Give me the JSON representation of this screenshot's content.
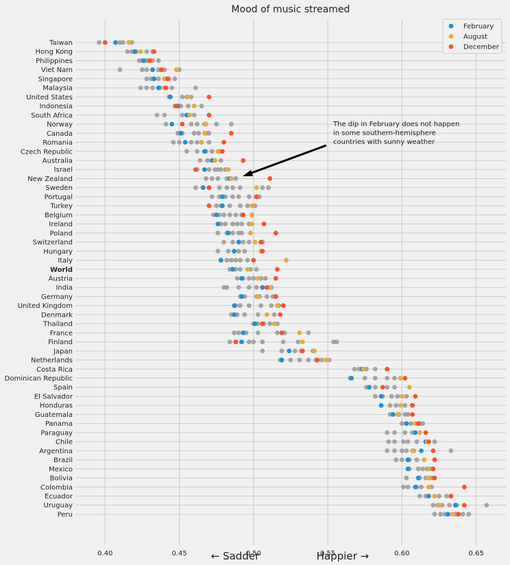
{
  "chart_data": {
    "type": "scatter",
    "title": "Mood of music streamed",
    "xlabel_left": "← Sadder",
    "xlabel_right": "Happier →",
    "xlim": [
      0.38,
      0.67
    ],
    "x_ticks": [
      0.4,
      0.45,
      0.5,
      0.55,
      0.6,
      0.65
    ],
    "x_tick_labels": [
      "0.40",
      "0.45",
      "0.50",
      "0.55",
      "0.60",
      "0.65"
    ],
    "grid": true,
    "legend_position": "top-right",
    "highlight_category": "World",
    "annotation": {
      "text_lines": [
        "The dip in February does not happen",
        "in some southern-hemisphere",
        "countries with sunny weather"
      ],
      "points_to": {
        "category": "New Zealand",
        "x": 0.493
      }
    },
    "categories": [
      "Taiwan",
      "Hong Kong",
      "Philippines",
      "Viet Nam",
      "Singapore",
      "Malaysia",
      "United States",
      "Indonesia",
      "South Africa",
      "Norway",
      "Canada",
      "Romania",
      "Czech Republic",
      "Australia",
      "Israel",
      "New Zealand",
      "Sweden",
      "Portugal",
      "Turkey",
      "Belgium",
      "Ireland",
      "Poland",
      "Switzerland",
      "Hungary",
      "Italy",
      "World",
      "Austria",
      "India",
      "Germany",
      "United Kingdom",
      "Denmark",
      "Thailand",
      "France",
      "Finland",
      "Japan",
      "Netherlands",
      "Costa Rica",
      "Dominican Republic",
      "Spain",
      "El Salvador",
      "Honduras",
      "Guatemala",
      "Panama",
      "Paraguay",
      "Chile",
      "Argentina",
      "Brazil",
      "Mexico",
      "Bolivia",
      "Colombia",
      "Ecuador",
      "Uruguay",
      "Peru"
    ],
    "other_months_color": "#999999",
    "series": [
      {
        "name": "February",
        "color": "#1f8fd1",
        "values": [
          0.407,
          0.42,
          0.426,
          0.432,
          0.433,
          0.436,
          0.444,
          0.449,
          0.455,
          0.445,
          0.451,
          0.454,
          0.467,
          0.472,
          0.467,
          0.484,
          0.466,
          0.479,
          0.479,
          0.475,
          0.476,
          0.483,
          0.49,
          0.487,
          0.478,
          0.486,
          0.492,
          0.506,
          0.492,
          0.487,
          0.487,
          0.501,
          0.493,
          0.492,
          0.524,
          0.519,
          0.573,
          0.566,
          0.578,
          0.586,
          0.586,
          0.594,
          0.603,
          0.609,
          0.616,
          0.613,
          0.604,
          0.604,
          0.611,
          0.609,
          0.618,
          0.636,
          0.631
        ]
      },
      {
        "name": "August",
        "color": "#e5ae38",
        "values": [
          0.416,
          0.424,
          0.431,
          0.448,
          0.44,
          0.44,
          0.456,
          0.46,
          0.457,
          0.468,
          0.467,
          0.465,
          0.476,
          0.474,
          0.483,
          0.485,
          0.502,
          0.502,
          0.499,
          0.499,
          0.499,
          0.498,
          0.501,
          0.505,
          0.522,
          0.496,
          0.503,
          0.511,
          0.503,
          0.516,
          0.509,
          0.514,
          0.531,
          0.533,
          0.541,
          0.549,
          0.574,
          0.599,
          0.605,
          0.6,
          0.599,
          0.597,
          0.609,
          0.612,
          0.617,
          0.607,
          0.615,
          0.619,
          0.618,
          0.618,
          0.622,
          0.625,
          0.634
        ]
      },
      {
        "name": "December",
        "color": "#fc4f30",
        "values": [
          0.4,
          0.433,
          0.43,
          0.438,
          0.442,
          0.441,
          0.47,
          0.448,
          0.47,
          0.452,
          0.485,
          0.48,
          0.479,
          0.493,
          0.461,
          0.511,
          0.47,
          0.502,
          0.47,
          0.493,
          0.507,
          0.515,
          0.505,
          0.506,
          0.5,
          0.516,
          0.515,
          0.509,
          0.515,
          0.52,
          0.518,
          0.506,
          0.519,
          0.488,
          0.533,
          0.543,
          0.59,
          0.602,
          0.587,
          0.609,
          0.607,
          0.607,
          0.611,
          0.616,
          0.618,
          0.621,
          0.622,
          0.621,
          0.622,
          0.642,
          0.633,
          0.642,
          0.638
        ]
      },
      {
        "name": "",
        "color": "#999999",
        "values": [
          [
            0.396,
            0.41,
            0.416,
            0.418,
            0.412
          ],
          [
            0.415,
            0.418,
            0.421,
            0.428,
            0.432
          ],
          [
            0.423,
            0.425,
            0.428,
            0.432,
            0.436
          ],
          [
            0.41,
            0.425,
            0.428,
            0.436,
            0.44,
            0.45
          ],
          [
            0.428,
            0.431,
            0.436,
            0.443,
            0.447
          ],
          [
            0.424,
            0.428,
            0.432,
            0.437,
            0.445,
            0.461
          ],
          [
            0.443,
            0.452,
            0.455,
            0.458
          ],
          [
            0.447,
            0.451,
            0.456,
            0.465
          ],
          [
            0.435,
            0.44,
            0.452,
            0.456,
            0.46
          ],
          [
            0.441,
            0.458,
            0.462,
            0.467,
            0.475,
            0.485
          ],
          [
            0.449,
            0.452,
            0.46,
            0.463,
            0.468,
            0.47
          ],
          [
            0.446,
            0.45,
            0.458,
            0.462,
            0.47
          ],
          [
            0.455,
            0.462,
            0.468,
            0.472,
            0.477
          ],
          [
            0.464,
            0.469,
            0.474,
            0.478
          ],
          [
            0.462,
            0.47,
            0.474,
            0.476,
            0.478,
            0.481
          ],
          [
            0.468,
            0.472,
            0.476,
            0.482,
            0.488
          ],
          [
            0.461,
            0.47,
            0.477,
            0.482,
            0.486,
            0.491,
            0.506,
            0.51
          ],
          [
            0.472,
            0.477,
            0.481,
            0.486,
            0.49,
            0.497,
            0.504
          ],
          [
            0.475,
            0.478,
            0.484,
            0.491,
            0.496,
            0.501
          ],
          [
            0.473,
            0.477,
            0.48,
            0.484,
            0.488,
            0.492
          ],
          [
            0.478,
            0.481,
            0.486,
            0.489,
            0.492,
            0.497
          ],
          [
            0.476,
            0.482,
            0.486,
            0.49,
            0.492
          ],
          [
            0.48,
            0.486,
            0.493,
            0.497,
            0.506
          ],
          [
            0.476,
            0.483,
            0.49,
            0.494,
            0.505
          ],
          [
            0.478,
            0.482,
            0.485,
            0.488,
            0.491,
            0.496
          ],
          [
            0.484,
            0.488,
            0.491,
            0.498,
            0.502
          ],
          [
            0.489,
            0.493,
            0.497,
            0.5,
            0.505,
            0.508
          ],
          [
            0.48,
            0.482,
            0.49,
            0.497,
            0.502,
            0.512
          ],
          [
            0.491,
            0.494,
            0.502,
            0.504,
            0.509,
            0.513
          ],
          [
            0.488,
            0.491,
            0.497,
            0.505,
            0.512,
            0.517
          ],
          [
            0.485,
            0.489,
            0.494,
            0.503,
            0.514
          ],
          [
            0.5,
            0.503,
            0.507,
            0.511,
            0.516
          ],
          [
            0.487,
            0.49,
            0.495,
            0.503,
            0.516,
            0.521,
            0.537
          ],
          [
            0.484,
            0.497,
            0.5,
            0.506,
            0.52,
            0.53,
            0.554,
            0.556
          ],
          [
            0.506,
            0.519,
            0.528,
            0.532,
            0.54
          ],
          [
            0.518,
            0.525,
            0.531,
            0.537,
            0.542,
            0.546,
            0.551
          ],
          [
            0.568,
            0.571,
            0.576,
            0.582
          ],
          [
            0.565,
            0.575,
            0.582,
            0.59,
            0.595
          ],
          [
            0.576,
            0.582,
            0.59,
            0.595
          ],
          [
            0.582,
            0.587,
            0.593,
            0.597,
            0.603
          ],
          [
            0.592,
            0.596,
            0.602,
            0.607
          ],
          [
            0.592,
            0.598,
            0.602,
            0.604
          ],
          [
            0.6,
            0.606,
            0.612,
            0.614
          ],
          [
            0.59,
            0.595,
            0.602,
            0.607
          ],
          [
            0.591,
            0.595,
            0.601,
            0.604,
            0.61,
            0.622
          ],
          [
            0.59,
            0.595,
            0.6,
            0.603,
            0.608,
            0.633
          ],
          [
            0.596,
            0.6,
            0.605,
            0.61
          ],
          [
            0.605,
            0.611,
            0.614,
            0.617
          ],
          [
            0.603,
            0.612,
            0.616,
            0.619,
            0.621
          ],
          [
            0.601,
            0.604,
            0.61,
            0.613,
            0.62
          ],
          [
            0.612,
            0.616,
            0.625,
            0.63,
            0.633
          ],
          [
            0.621,
            0.624,
            0.627,
            0.632,
            0.637,
            0.657
          ],
          [
            0.622,
            0.626,
            0.629,
            0.636,
            0.641,
            0.645
          ]
        ]
      }
    ]
  }
}
